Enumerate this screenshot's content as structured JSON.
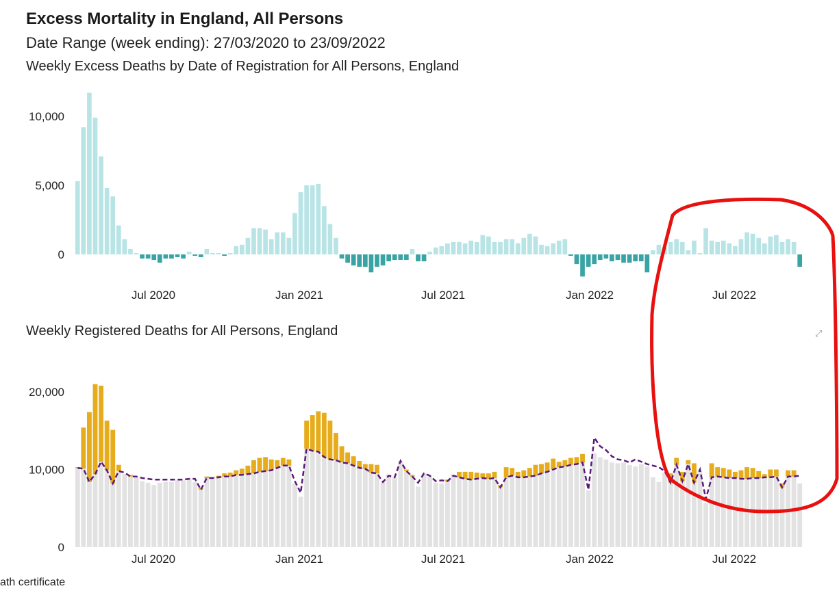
{
  "header": {
    "title": "Excess Mortality in England, All Persons",
    "subtitle": "Date Range (week ending): 27/03/2020 to 23/09/2022"
  },
  "footnote": "ath certificate",
  "colors": {
    "excess_positive": "#b8e4e6",
    "excess_negative": "#3aa3a3",
    "expected_base": "#e2e2e2",
    "excess_deaths": "#e6ac1c",
    "expected_line": "#5b1a7a",
    "annotation": "#e8110f"
  },
  "chart_data": [
    {
      "type": "bar",
      "title": "Weekly Excess Deaths by Date of Registration for All Persons, England",
      "xlabel": "",
      "ylabel": "",
      "ylim": [
        -1700,
        11700
      ],
      "yticks": [
        0,
        5000,
        10000
      ],
      "ytick_labels": [
        "0",
        "5,000",
        "10,000"
      ],
      "xtick_labels": [
        "Jul 2020",
        "Jan 2021",
        "Jul 2021",
        "Jan 2022",
        "Jul 2022"
      ],
      "x_week_ending_first": "27/03/2020",
      "x_week_ending_last": "23/09/2022",
      "values": [
        5300,
        9200,
        11700,
        9900,
        7100,
        4800,
        4200,
        2100,
        1100,
        400,
        100,
        -300,
        -300,
        -400,
        -600,
        -300,
        -300,
        -200,
        -300,
        200,
        -100,
        -200,
        400,
        100,
        100,
        -100,
        100,
        600,
        700,
        1200,
        1900,
        1900,
        1800,
        1100,
        1600,
        1600,
        1200,
        3000,
        4500,
        5000,
        5000,
        5100,
        3500,
        2200,
        1200,
        -300,
        -600,
        -800,
        -900,
        -900,
        -1300,
        -900,
        -800,
        -500,
        -400,
        -400,
        -400,
        400,
        -500,
        -500,
        200,
        500,
        600,
        800,
        900,
        900,
        800,
        1000,
        900,
        1400,
        1300,
        900,
        900,
        1100,
        1100,
        800,
        1200,
        1500,
        1300,
        700,
        600,
        800,
        1000,
        1100,
        -100,
        -700,
        -1600,
        -900,
        -700,
        -400,
        -300,
        -500,
        -400,
        -600,
        -600,
        -500,
        -500,
        -1300,
        300,
        700,
        500,
        900,
        1100,
        900,
        300,
        1000,
        100,
        1900,
        1000,
        900,
        1000,
        800,
        600,
        1100,
        1600,
        1500,
        1200,
        800,
        1300,
        1400,
        900,
        1100,
        900,
        -900
      ]
    },
    {
      "type": "bar",
      "title": "Weekly Registered Deaths for All Persons, England",
      "xlabel": "",
      "ylabel": "",
      "ylim": [
        0,
        23000
      ],
      "yticks": [
        0,
        10000,
        20000
      ],
      "ytick_labels": [
        "0",
        "10,000",
        "20,000"
      ],
      "xtick_labels": [
        "Jul 2020",
        "Jan 2021",
        "Jul 2021",
        "Jan 2022",
        "Jul 2022"
      ],
      "x_week_ending_first": "27/03/2020",
      "x_week_ending_last": "23/09/2022",
      "series": [
        {
          "values": [
            10300,
            15400,
            17400,
            21000,
            20800,
            16300,
            15100,
            10600,
            9400,
            9300,
            9000,
            8500,
            8300,
            8000,
            8300,
            8400,
            8400,
            8600,
            8600,
            8800,
            8400,
            7600,
            9100,
            9000,
            9200,
            9500,
            9600,
            9900,
            10100,
            10500,
            11200,
            11500,
            11600,
            11300,
            11200,
            11500,
            11300,
            8200,
            6500,
            16300,
            17000,
            17500,
            17300,
            16300,
            14700,
            13000,
            12200,
            11700,
            11100,
            10700,
            10700,
            10600,
            8400,
            9300,
            9000,
            11100,
            10000,
            9300,
            7800,
            9500,
            9100,
            8300,
            8200,
            8700,
            9300,
            9700,
            9700,
            9700,
            9600,
            9500,
            9500,
            9700,
            8000,
            10300,
            10200,
            9700,
            9900,
            10200,
            10600,
            10700,
            10900,
            11400,
            11000,
            11200,
            11500,
            11600,
            12000,
            7300,
            12100,
            11600,
            11300,
            10900,
            10800,
            10900,
            10600,
            10400,
            10700,
            10400,
            9000,
            8400,
            9600,
            9500,
            11500,
            9700,
            11200,
            10800,
            9800,
            5700,
            10800,
            10300,
            10200,
            10000,
            9700,
            9900,
            10300,
            10200,
            9800,
            9400,
            10000,
            10000,
            8200,
            9900,
            9900,
            8200
          ]
        },
        {
          "values": [
            10200,
            10100,
            8400,
            9400,
            11000,
            9900,
            8200,
            9800,
            9600,
            9100,
            9100,
            8900,
            8800,
            8700,
            8700,
            8700,
            8700,
            8700,
            8700,
            8800,
            8800,
            7400,
            8900,
            8900,
            9000,
            9100,
            9100,
            9300,
            9300,
            9400,
            9500,
            9700,
            9800,
            9900,
            10200,
            10500,
            10500,
            8500,
            7000,
            12700,
            12400,
            12300,
            11600,
            11300,
            11200,
            10900,
            10800,
            10500,
            10200,
            10100,
            9600,
            9500,
            8400,
            9200,
            9000,
            11100,
            9800,
            9100,
            8300,
            9500,
            9200,
            8500,
            8600,
            8500,
            9200,
            9000,
            8800,
            8700,
            8800,
            8900,
            8800,
            8900,
            7700,
            9000,
            9200,
            9000,
            9000,
            9100,
            9200,
            9500,
            9700,
            10000,
            10300,
            10400,
            10600,
            10700,
            10900,
            7400,
            14100,
            13000,
            12500,
            11700,
            11300,
            11200,
            10900,
            11300,
            11000,
            10700,
            10500,
            10300,
            9800,
            8300,
            10600,
            8500,
            10700,
            8300,
            10000,
            6200,
            9000,
            9100,
            9000,
            8900,
            8900,
            8800,
            8800,
            8900,
            8900,
            9000,
            9000,
            9100,
            7700,
            9100,
            9100,
            9200
          ]
        }
      ]
    }
  ]
}
